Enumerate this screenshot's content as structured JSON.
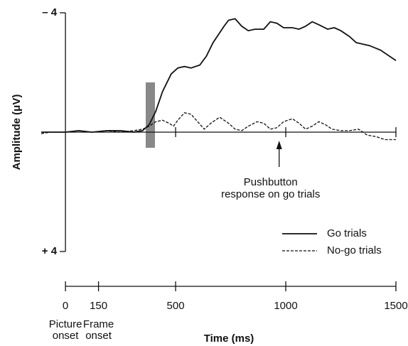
{
  "chart_data": {
    "type": "line",
    "y_label": "Amplitude (μV)",
    "x_label": "Time (ms)",
    "invert_y": true,
    "ylim": [
      -4,
      4
    ],
    "yticks": [
      {
        "value": -4,
        "label": "– 4"
      },
      {
        "value": 4,
        "label": "+ 4"
      }
    ],
    "xlim": [
      -110,
      1500
    ],
    "xticks": [
      0,
      150,
      500,
      1000,
      1500
    ],
    "tick_notes": [
      {
        "at": 0,
        "lines": [
          "Picture",
          "onset"
        ]
      },
      {
        "at": 150,
        "lines": [
          "Frame",
          "onset"
        ]
      }
    ],
    "annotation": {
      "lines": [
        "Pushbutton",
        "response on go trials"
      ],
      "x": 970
    },
    "legend": "lower right",
    "series": [
      {
        "name": "Go trials",
        "color": "#111111",
        "dash": "solid",
        "x": [
          -110,
          -70,
          0,
          60,
          120,
          190,
          250,
          310,
          350,
          380,
          410,
          440,
          480,
          510,
          540,
          570,
          610,
          640,
          670,
          720,
          740,
          770,
          800,
          830,
          860,
          900,
          930,
          960,
          990,
          1030,
          1060,
          1090,
          1120,
          1150,
          1190,
          1220,
          1250,
          1290,
          1320,
          1350,
          1380,
          1430,
          1500
        ],
        "values": [
          0,
          0,
          0,
          -0.05,
          0,
          -0.05,
          -0.05,
          0,
          -0.05,
          -0.25,
          -0.7,
          -1.35,
          -1.95,
          -2.15,
          -2.2,
          -2.15,
          -2.25,
          -2.55,
          -3,
          -3.55,
          -3.75,
          -3.8,
          -3.55,
          -3.4,
          -3.45,
          -3.45,
          -3.7,
          -3.65,
          -3.5,
          -3.5,
          -3.45,
          -3.55,
          -3.7,
          -3.6,
          -3.45,
          -3.5,
          -3.4,
          -3.2,
          -3,
          -2.95,
          -2.9,
          -2.75,
          -2.4
        ]
      },
      {
        "name": "No-go trials",
        "color": "#111111",
        "dash": "dashed",
        "x": [
          -110,
          -70,
          0,
          60,
          120,
          190,
          250,
          310,
          350,
          380,
          410,
          440,
          470,
          490,
          510,
          540,
          570,
          600,
          630,
          660,
          700,
          740,
          770,
          800,
          830,
          870,
          900,
          930,
          960,
          990,
          1030,
          1060,
          1090,
          1120,
          1150,
          1180,
          1210,
          1250,
          1290,
          1330,
          1370,
          1410,
          1450,
          1500
        ],
        "values": [
          0.05,
          0,
          0,
          -0.05,
          0,
          -0.05,
          0,
          -0.05,
          -0.1,
          -0.2,
          -0.35,
          -0.4,
          -0.3,
          -0.2,
          -0.4,
          -0.65,
          -0.6,
          -0.35,
          -0.1,
          -0.3,
          -0.5,
          -0.3,
          -0.1,
          -0.05,
          -0.2,
          -0.35,
          -0.3,
          -0.1,
          -0.15,
          -0.35,
          -0.45,
          -0.3,
          -0.1,
          -0.2,
          -0.35,
          -0.25,
          -0.1,
          -0.05,
          -0.05,
          -0.1,
          0.1,
          0.15,
          0.25,
          0.25
        ]
      }
    ]
  }
}
